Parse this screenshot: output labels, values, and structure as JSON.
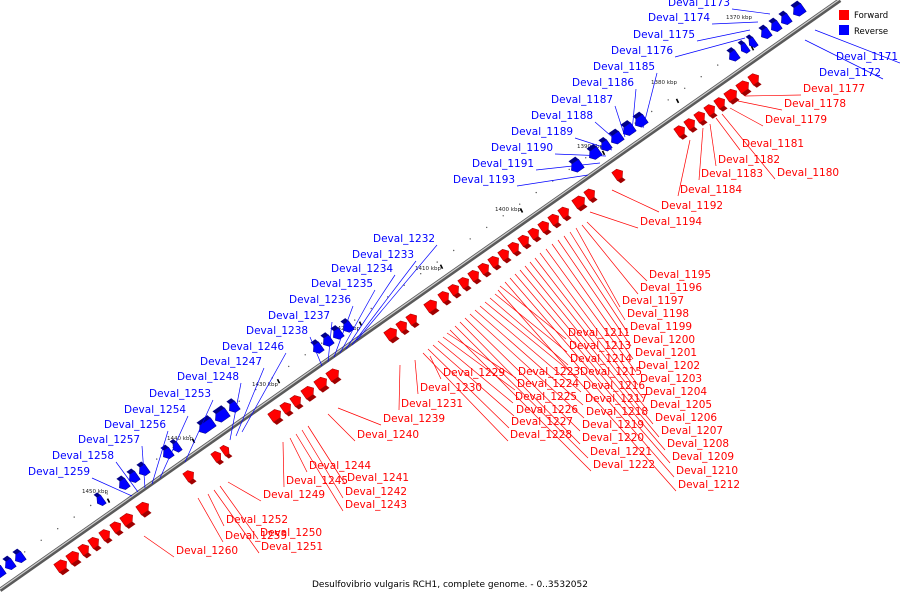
{
  "caption": "Desulfovibrio vulgaris RCH1, complete genome. - 0..3532052",
  "legend": [
    {
      "label": "Forward",
      "color": "#ff0000"
    },
    {
      "label": "Reverse",
      "color": "#0000ff"
    }
  ],
  "colors": {
    "forward": "#ff0000",
    "reverse": "#0000ff",
    "backbone": "#888888",
    "scale_mark": "#222222"
  },
  "scale_ticks": [
    "1370 kbp",
    "1380 kbp",
    "1390 kbp",
    "1400 kbp",
    "1410 kbp",
    "1420 kbp",
    "1430 kbp",
    "1440 kbp",
    "1450 kbp"
  ],
  "reverse_genes": [
    "Deval_1171",
    "Deval_1172",
    "Deval_1173",
    "Deval_1174",
    "Deval_1175",
    "Deval_1176",
    "Deval_1185",
    "Deval_1186",
    "Deval_1187",
    "Deval_1188",
    "Deval_1189",
    "Deval_1190",
    "Deval_1191",
    "Deval_1193",
    "Deval_1232",
    "Deval_1233",
    "Deval_1234",
    "Deval_1235",
    "Deval_1236",
    "Deval_1237",
    "Deval_1238",
    "Deval_1246",
    "Deval_1247",
    "Deval_1248",
    "Deval_1253",
    "Deval_1254",
    "Deval_1256",
    "Deval_1257",
    "Deval_1258",
    "Deval_1259"
  ],
  "forward_genes": [
    "Deval_1177",
    "Deval_1178",
    "Deval_1179",
    "Deval_1180",
    "Deval_1181",
    "Deval_1182",
    "Deval_1183",
    "Deval_1184",
    "Deval_1192",
    "Deval_1194",
    "Deval_1195",
    "Deval_1196",
    "Deval_1197",
    "Deval_1198",
    "Deval_1199",
    "Deval_1200",
    "Deval_1201",
    "Deval_1202",
    "Deval_1203",
    "Deval_1204",
    "Deval_1205",
    "Deval_1206",
    "Deval_1207",
    "Deval_1208",
    "Deval_1209",
    "Deval_1210",
    "Deval_1211",
    "Deval_1212",
    "Deval_1213",
    "Deval_1214",
    "Deval_1215",
    "Deval_1216",
    "Deval_1217",
    "Deval_1218",
    "Deval_1219",
    "Deval_1220",
    "Deval_1221",
    "Deval_1222",
    "Deval_1223",
    "Deval_1224",
    "Deval_1225",
    "Deval_1226",
    "Deval_1227",
    "Deval_1228",
    "Deval_1229",
    "Deval_1230",
    "Deval_1231",
    "Deval_1239",
    "Deval_1240",
    "Deval_1241",
    "Deval_1242",
    "Deval_1243",
    "Deval_1244",
    "Deval_1245",
    "Deval_1249",
    "Deval_1250",
    "Deval_1251",
    "Deval_1252",
    "Deval_1255",
    "Deval_1260"
  ]
}
